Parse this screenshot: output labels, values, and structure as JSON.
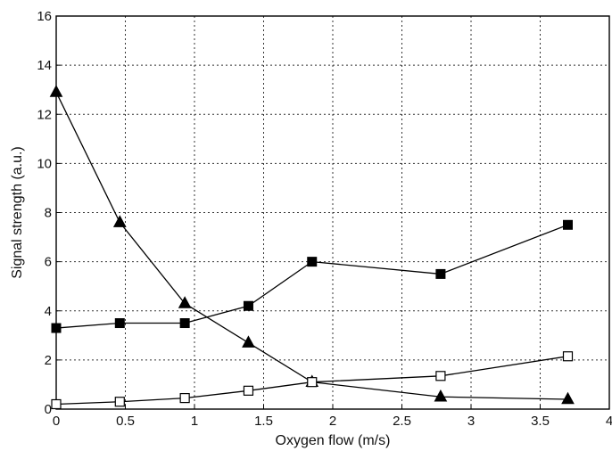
{
  "chart_data": {
    "type": "line",
    "title": "",
    "xlabel": "Oxygen flow (m/s)",
    "ylabel": "Signal strength (a.u.)",
    "xlim": [
      0,
      4
    ],
    "ylim": [
      0,
      16
    ],
    "xticks": [
      0,
      0.5,
      1,
      1.5,
      2,
      2.5,
      3,
      3.5,
      4
    ],
    "yticks": [
      0,
      2,
      4,
      6,
      8,
      10,
      12,
      14,
      16
    ],
    "xtick_labels": [
      "0",
      "0.5",
      "1",
      "1.5",
      "2",
      "2.5",
      "3",
      "3.5",
      "4"
    ],
    "ytick_labels": [
      "0",
      "2",
      "4",
      "6",
      "8",
      "10",
      "12",
      "14",
      "16"
    ],
    "grid": true,
    "legend": "none",
    "series": [
      {
        "marker": "filled-triangle",
        "x": [
          0,
          0.46,
          0.93,
          1.39,
          1.85,
          2.78,
          3.7
        ],
        "y": [
          12.9,
          7.6,
          4.3,
          2.7,
          1.1,
          0.5,
          0.4
        ]
      },
      {
        "marker": "filled-square",
        "x": [
          0,
          0.46,
          0.93,
          1.39,
          1.85,
          2.78,
          3.7
        ],
        "y": [
          3.3,
          3.5,
          3.5,
          4.2,
          6.0,
          5.5,
          7.5
        ]
      },
      {
        "marker": "open-square",
        "x": [
          0,
          0.46,
          0.93,
          1.39,
          1.85,
          2.78,
          3.7
        ],
        "y": [
          0.2,
          0.3,
          0.45,
          0.75,
          1.1,
          1.35,
          2.15
        ]
      }
    ]
  }
}
